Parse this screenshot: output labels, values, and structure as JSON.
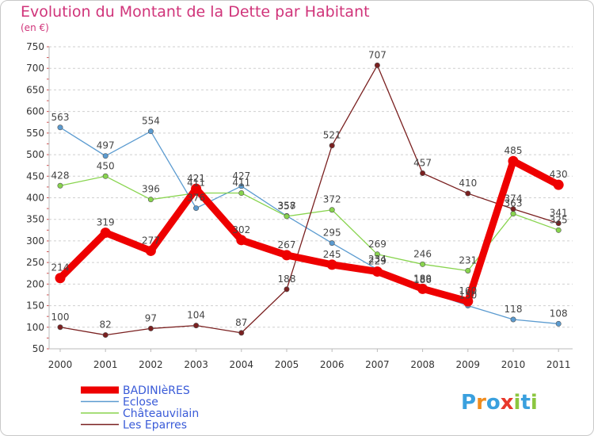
{
  "chart_data": {
    "type": "line",
    "title": "Evolution du Montant de la Dette par Habitant",
    "subtitle": "(en €)",
    "x": [
      "2000",
      "2001",
      "2002",
      "2003",
      "2004",
      "2005",
      "2006",
      "2007",
      "2008",
      "2009",
      "2010",
      "2011"
    ],
    "yticks": [
      50,
      100,
      150,
      200,
      250,
      300,
      350,
      400,
      450,
      500,
      550,
      600,
      650,
      700,
      750
    ],
    "ylim": [
      50,
      750
    ],
    "grid": "horizontal dashed",
    "legend_position": "bottom-left",
    "series": [
      {
        "name": "BADINIèRES",
        "color": "#ee0000",
        "values": [
          214,
          319,
          277,
          421,
          302,
          267,
          245,
          229,
          189,
          160,
          485,
          430
        ]
      },
      {
        "name": "Eclose",
        "color": "#5b9bd0",
        "values": [
          563,
          497,
          554,
          376,
          427,
          358,
          295,
          234,
          186,
          150,
          118,
          108
        ]
      },
      {
        "name": "Châteauvilain",
        "color": "#88d44e",
        "values": [
          428,
          450,
          396,
          411,
          411,
          357,
          372,
          269,
          246,
          231,
          363,
          325
        ]
      },
      {
        "name": "Les Eparres",
        "color": "#7a2020",
        "values": [
          100,
          82,
          97,
          104,
          87,
          188,
          521,
          707,
          457,
          410,
          374,
          341
        ]
      }
    ],
    "data_labels": [
      [
        "214",
        "319",
        "277",
        "421",
        "302",
        "267",
        "245",
        "229",
        "189",
        "160",
        "485",
        "430"
      ],
      [
        "563",
        "497",
        "554",
        "376",
        "427",
        "358",
        "295",
        "234",
        "186",
        "150",
        "118",
        "108"
      ],
      [
        "428",
        "450",
        "396",
        "411",
        "411",
        "357",
        "372",
        "269",
        "246",
        "231",
        "363",
        "325"
      ],
      [
        "100",
        "82",
        "97",
        "104",
        "87",
        "188",
        "521",
        "707",
        "457",
        "410",
        "374",
        "341"
      ]
    ]
  },
  "logo": {
    "text": "Proxiti"
  }
}
